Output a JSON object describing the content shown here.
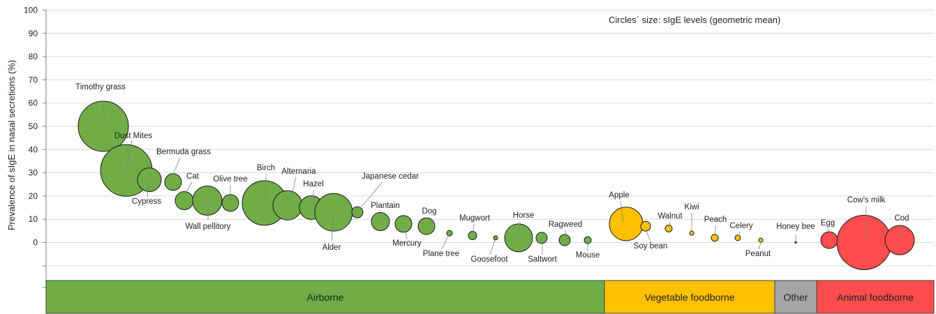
{
  "chart_data": {
    "type": "bubble",
    "ylabel": "Prevalence of sIgE in nasal secretions (%)",
    "ylim": [
      0,
      100
    ],
    "yticks": [
      0,
      10,
      20,
      30,
      40,
      50,
      60,
      70,
      80,
      90,
      100
    ],
    "grid": true,
    "note": "Circles´ size: sIgE levels (geometric mean)",
    "groups": [
      {
        "name": "Airborne",
        "color": "#70ad47"
      },
      {
        "name": "Vegetable foodborne",
        "color": "#ffc000"
      },
      {
        "name": "Other",
        "color": "#a5a5a5"
      },
      {
        "name": "Animal foodborne",
        "color": "#ff4d4d"
      }
    ],
    "points": [
      {
        "label": "Timothy grass",
        "group": "Airborne",
        "y": 50,
        "size": 36
      },
      {
        "label": "Dust Mites",
        "group": "Airborne",
        "y": 31,
        "size": 37
      },
      {
        "label": "Cypress",
        "group": "Airborne",
        "y": 27,
        "size": 17
      },
      {
        "label": "Bermuda grass",
        "group": "Airborne",
        "y": 26,
        "size": 12
      },
      {
        "label": "Cat",
        "group": "Airborne",
        "y": 18,
        "size": 13
      },
      {
        "label": "Wall pellitory",
        "group": "Airborne",
        "y": 18,
        "size": 21
      },
      {
        "label": "Olive tree",
        "group": "Airborne",
        "y": 17,
        "size": 12
      },
      {
        "label": "Birch",
        "group": "Airborne",
        "y": 17,
        "size": 32
      },
      {
        "label": "Alternaria",
        "group": "Airborne",
        "y": 16,
        "size": 21
      },
      {
        "label": "Hazel",
        "group": "Airborne",
        "y": 15,
        "size": 17
      },
      {
        "label": "Alder",
        "group": "Airborne",
        "y": 13,
        "size": 27
      },
      {
        "label": "Japanese cedar",
        "group": "Airborne",
        "y": 13,
        "size": 8
      },
      {
        "label": "Plantain",
        "group": "Airborne",
        "y": 9,
        "size": 13
      },
      {
        "label": "Mercury",
        "group": "Airborne",
        "y": 8,
        "size": 12
      },
      {
        "label": "Dog",
        "group": "Airborne",
        "y": 7,
        "size": 12
      },
      {
        "label": "Plane tree",
        "group": "Airborne",
        "y": 4,
        "size": 4
      },
      {
        "label": "Mugwort",
        "group": "Airborne",
        "y": 3,
        "size": 6
      },
      {
        "label": "Goosefoot",
        "group": "Airborne",
        "y": 2,
        "size": 3
      },
      {
        "label": "Horse",
        "group": "Airborne",
        "y": 2,
        "size": 20
      },
      {
        "label": "Saltwort",
        "group": "Airborne",
        "y": 2,
        "size": 8
      },
      {
        "label": "Ragweed",
        "group": "Airborne",
        "y": 1,
        "size": 8
      },
      {
        "label": "Mouse",
        "group": "Airborne",
        "y": 1,
        "size": 5
      },
      {
        "label": "Apple",
        "group": "Vegetable foodborne",
        "y": 8,
        "size": 24
      },
      {
        "label": "Soy bean",
        "group": "Vegetable foodborne",
        "y": 7,
        "size": 7
      },
      {
        "label": "Walnut",
        "group": "Vegetable foodborne",
        "y": 6,
        "size": 5
      },
      {
        "label": "Kiwi",
        "group": "Vegetable foodborne",
        "y": 4,
        "size": 3
      },
      {
        "label": "Peach",
        "group": "Vegetable foodborne",
        "y": 2,
        "size": 5
      },
      {
        "label": "Celery",
        "group": "Vegetable foodborne",
        "y": 2,
        "size": 4
      },
      {
        "label": "Peanut",
        "group": "Vegetable foodborne",
        "y": 1,
        "size": 3
      },
      {
        "label": "Honey bee",
        "group": "Other",
        "y": 0,
        "size": 0.8
      },
      {
        "label": "Egg",
        "group": "Animal foodborne",
        "y": 1,
        "size": 12
      },
      {
        "label": "Cow's milk",
        "group": "Animal foodborne",
        "y": 0,
        "size": 39
      },
      {
        "label": "Cod",
        "group": "Animal foodborne",
        "y": 1,
        "size": 21
      }
    ]
  }
}
